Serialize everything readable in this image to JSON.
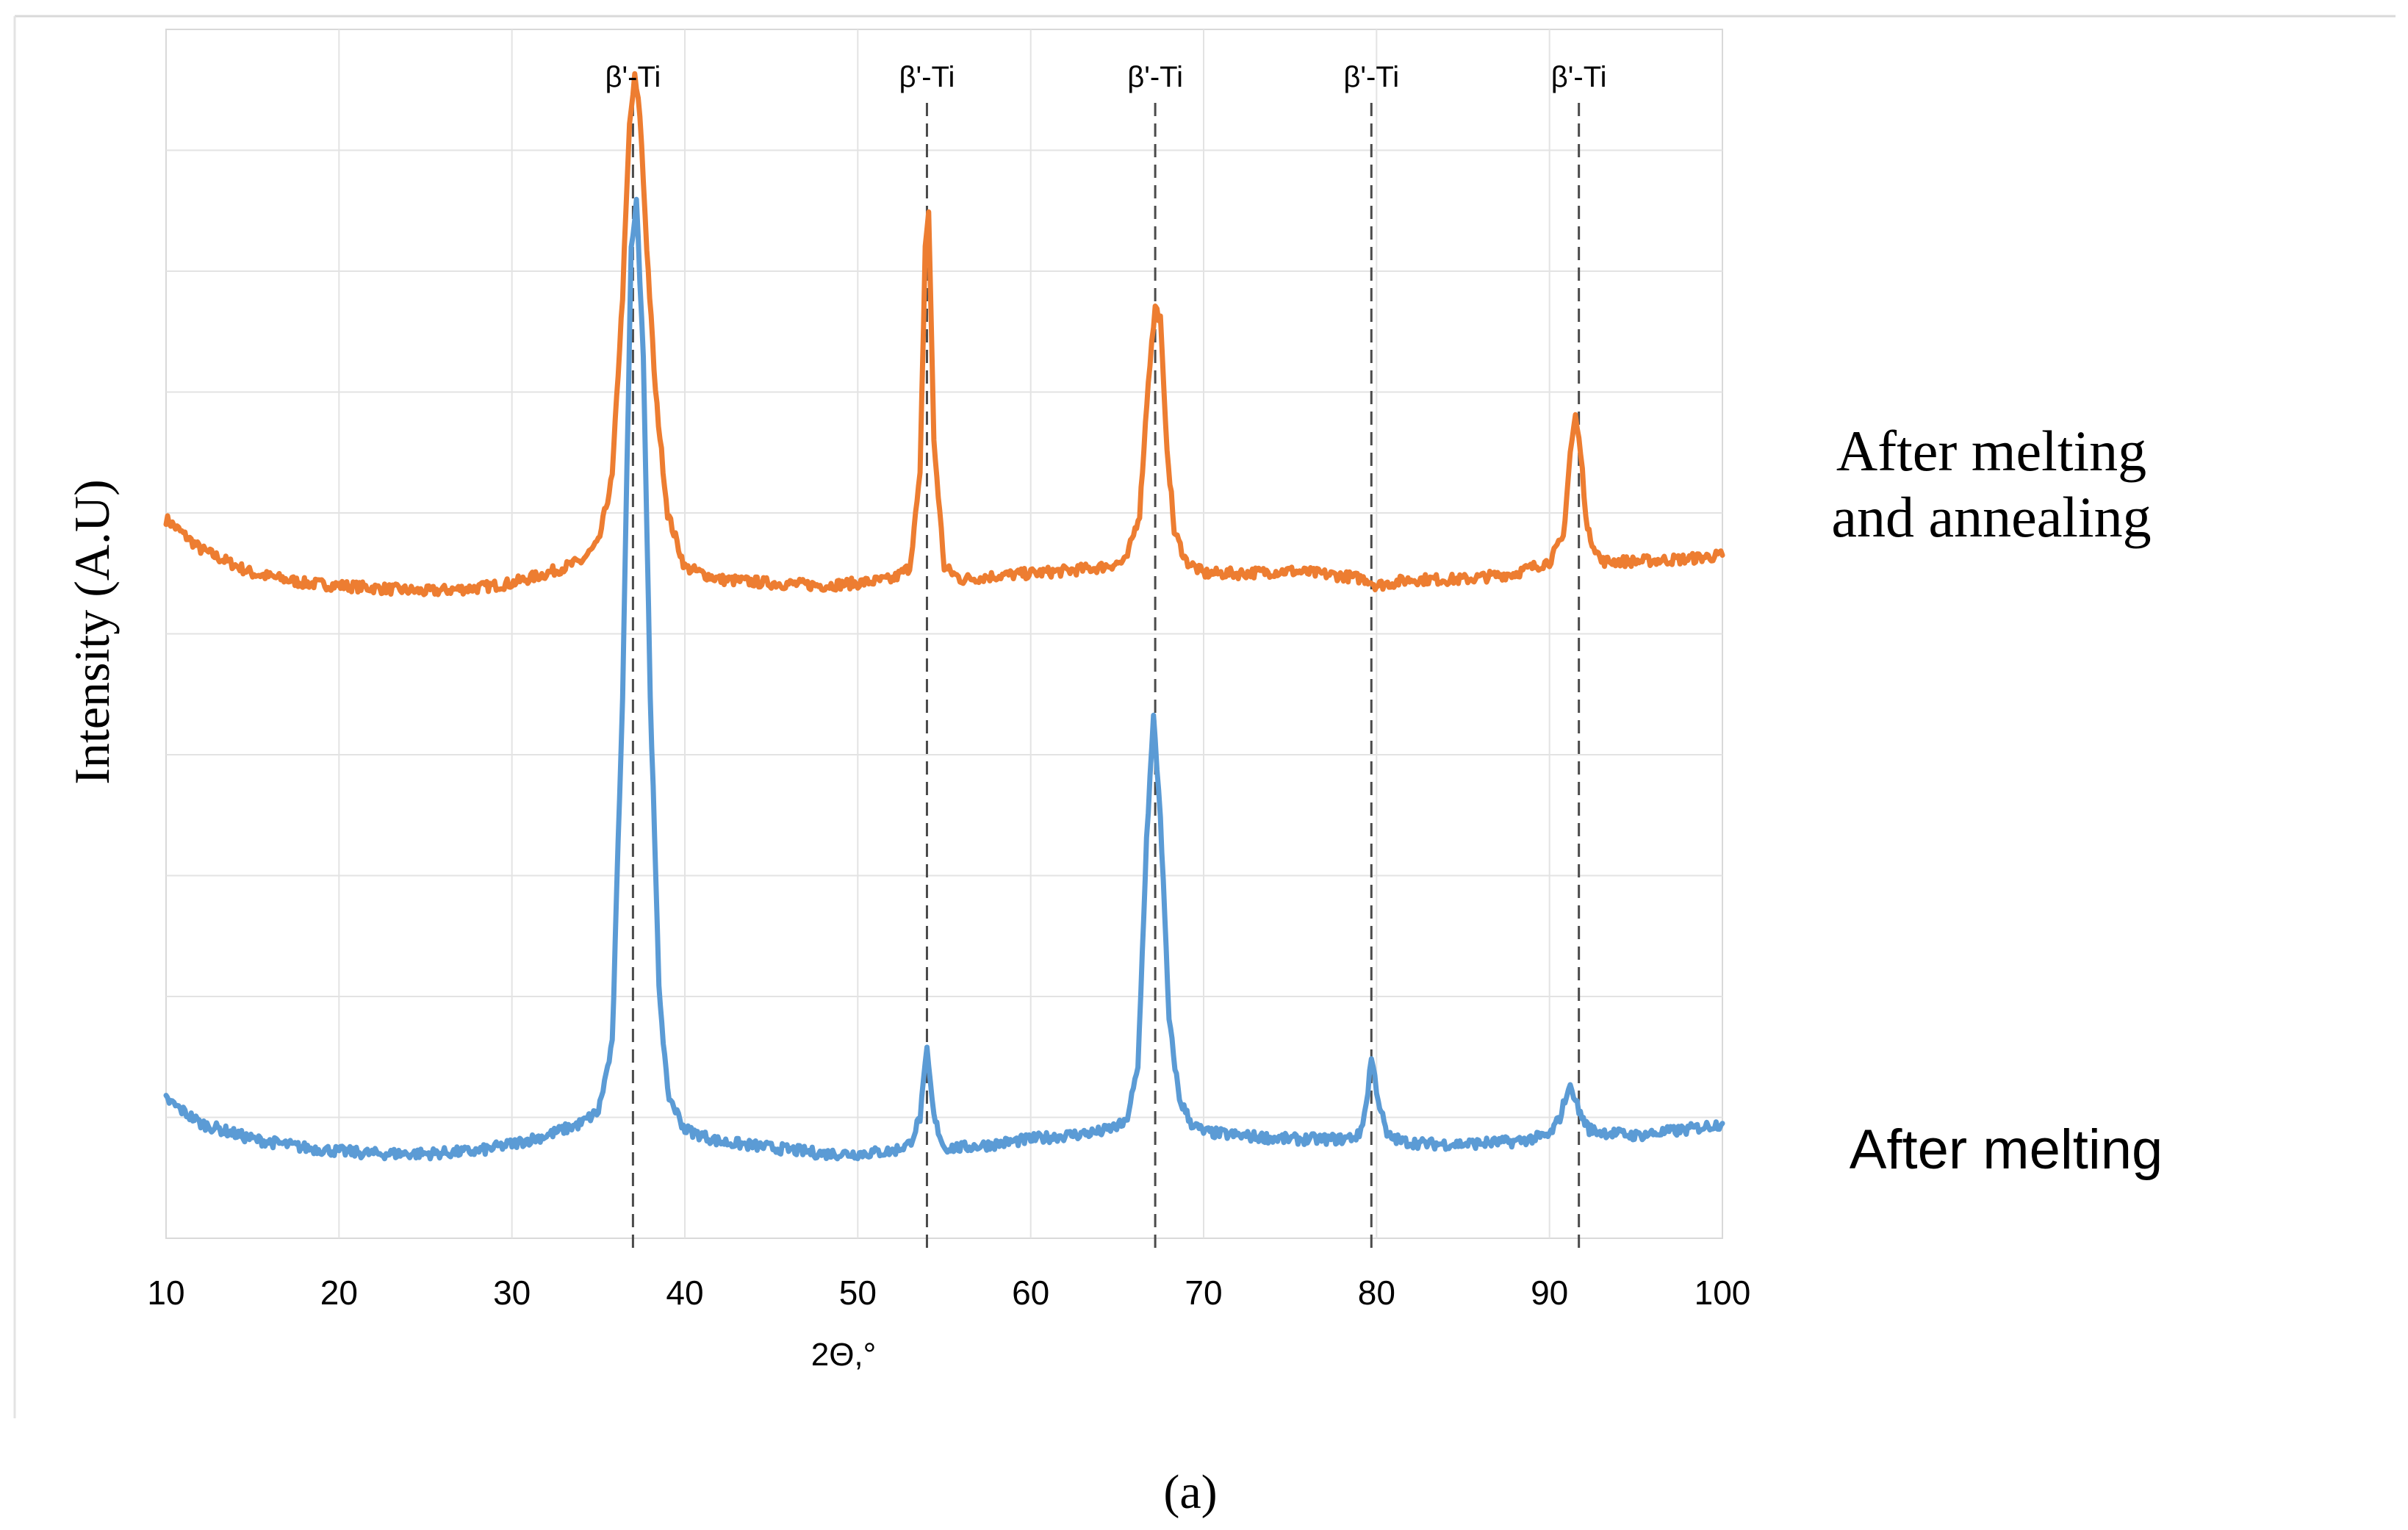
{
  "chart_data": {
    "type": "line",
    "title": "",
    "xlabel": "2Θ,°",
    "ylabel": "Intensity (A.U)",
    "xlim": [
      10,
      100
    ],
    "ylim": [
      0,
      10
    ],
    "x_ticks": [
      10,
      20,
      30,
      40,
      50,
      60,
      70,
      80,
      90,
      100
    ],
    "x_tick_labels": [
      "10",
      "20",
      "30",
      "40",
      "50",
      "60",
      "70",
      "80",
      "90",
      "100"
    ],
    "grid": true,
    "y_tick_labels_shown": false,
    "series": [
      {
        "name": "After melting and annealing",
        "color": "#ED7D31",
        "label_lines": [
          "After melting",
          "and annealing"
        ],
        "x": [
          10,
          12,
          15,
          18,
          20,
          22,
          25,
          28,
          30,
          32,
          34,
          35,
          35.8,
          36.4,
          36.8,
          37.1,
          37.4,
          37.8,
          38.3,
          39,
          40,
          42,
          45,
          48,
          50,
          52,
          53,
          53.6,
          53.9,
          54.1,
          54.4,
          55,
          56,
          58,
          60,
          62,
          64,
          65.5,
          66.3,
          66.8,
          67.2,
          67.5,
          67.8,
          68.3,
          69,
          70,
          72,
          75,
          78,
          79.5,
          80,
          82,
          85,
          88,
          90,
          90.8,
          91.2,
          91.5,
          91.8,
          92.2,
          93,
          95,
          98,
          100
        ],
        "y": [
          5.95,
          5.7,
          5.5,
          5.42,
          5.4,
          5.38,
          5.35,
          5.38,
          5.42,
          5.5,
          5.6,
          5.75,
          6.3,
          7.8,
          9.2,
          9.6,
          9.3,
          8.2,
          7.0,
          6.0,
          5.55,
          5.45,
          5.42,
          5.4,
          5.42,
          5.45,
          5.55,
          6.3,
          8.2,
          8.5,
          6.6,
          5.55,
          5.45,
          5.48,
          5.5,
          5.52,
          5.55,
          5.6,
          6.0,
          7.1,
          7.7,
          7.6,
          6.7,
          5.85,
          5.6,
          5.5,
          5.5,
          5.52,
          5.48,
          5.45,
          5.4,
          5.45,
          5.45,
          5.5,
          5.6,
          5.8,
          6.5,
          6.8,
          6.5,
          5.85,
          5.6,
          5.6,
          5.62,
          5.65
        ]
      },
      {
        "name": "After melting",
        "color": "#5B9BD5",
        "label_lines": [
          "After melting"
        ],
        "x": [
          10,
          12,
          15,
          18,
          20,
          22,
          25,
          28,
          30,
          32,
          34,
          35,
          35.8,
          36.4,
          36.9,
          37.2,
          37.6,
          38,
          38.5,
          39,
          40,
          42,
          45,
          48,
          50,
          52,
          53,
          53.6,
          54.0,
          54.4,
          55,
          56,
          58,
          60,
          62,
          64,
          65.5,
          66.2,
          66.7,
          67.1,
          67.5,
          68,
          68.6,
          69.3,
          70,
          72,
          75,
          78,
          79,
          79.4,
          79.7,
          80.1,
          80.6,
          81.5,
          83,
          85,
          88,
          90,
          90.6,
          91,
          91.3,
          91.7,
          92.3,
          93,
          95,
          98,
          100
        ],
        "y": [
          1.15,
          0.95,
          0.82,
          0.75,
          0.72,
          0.7,
          0.7,
          0.72,
          0.78,
          0.85,
          0.95,
          1.05,
          1.6,
          4.5,
          8.2,
          8.6,
          7.3,
          4.5,
          2.1,
          1.2,
          0.9,
          0.8,
          0.75,
          0.7,
          0.7,
          0.72,
          0.78,
          1.0,
          1.55,
          1.0,
          0.75,
          0.75,
          0.78,
          0.82,
          0.85,
          0.88,
          0.95,
          1.4,
          3.3,
          4.3,
          3.5,
          1.8,
          1.15,
          0.95,
          0.88,
          0.85,
          0.82,
          0.82,
          0.85,
          1.1,
          1.5,
          1.15,
          0.85,
          0.8,
          0.78,
          0.78,
          0.8,
          0.85,
          1.0,
          1.2,
          1.25,
          1.05,
          0.9,
          0.88,
          0.85,
          0.9,
          0.95
        ]
      }
    ],
    "reference_lines": [
      {
        "x": 37.0,
        "label": "β'-Ti"
      },
      {
        "x": 54.0,
        "label": "β'-Ti"
      },
      {
        "x": 67.2,
        "label": "β'-Ti"
      },
      {
        "x": 79.7,
        "label": "β'-Ti"
      },
      {
        "x": 91.7,
        "label": "β'-Ti"
      }
    ],
    "caption": "(a)"
  }
}
